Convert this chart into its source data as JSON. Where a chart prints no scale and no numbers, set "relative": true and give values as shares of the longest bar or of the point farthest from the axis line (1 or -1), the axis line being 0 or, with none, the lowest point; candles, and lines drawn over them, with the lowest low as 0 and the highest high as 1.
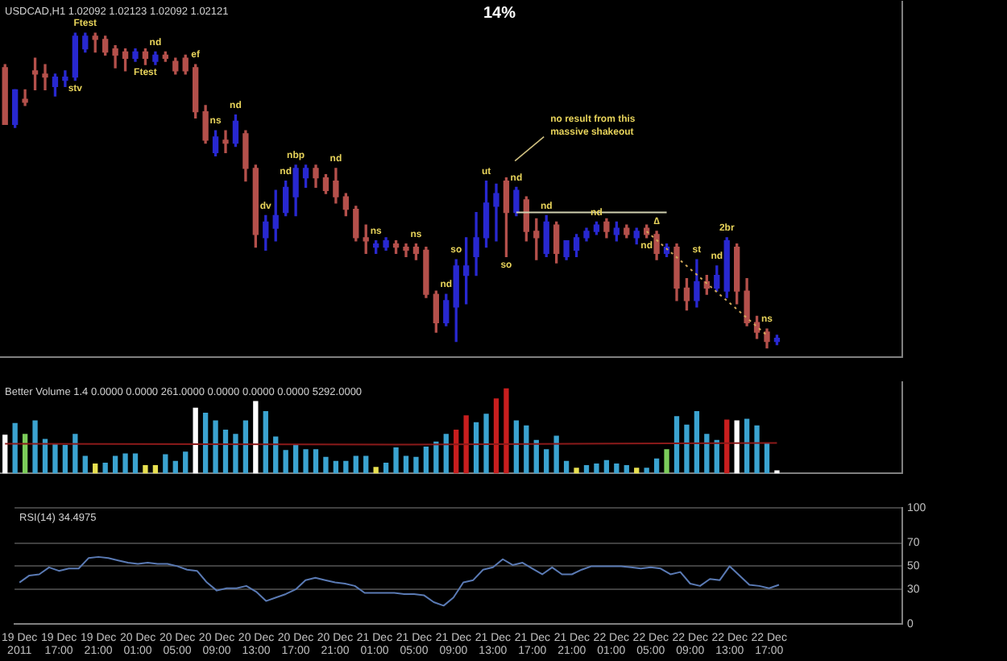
{
  "chart_data": [
    {
      "type": "candlestick",
      "title": "USDCAD,H1 1.02092 1.02123 1.02092 1.02121",
      "relative": true,
      "categories": [
        null,
        null,
        null,
        null,
        null,
        null,
        null,
        null,
        null,
        null,
        null,
        null,
        null,
        null,
        null,
        null,
        null,
        null,
        null,
        null,
        null,
        null,
        null,
        null,
        null,
        null,
        null,
        null,
        null,
        null,
        null,
        null,
        null,
        null,
        null,
        null,
        null,
        null,
        null,
        null,
        null,
        null,
        null,
        null,
        null,
        null,
        null,
        null,
        null,
        null,
        null,
        null,
        null,
        null,
        null,
        null,
        null,
        null,
        null,
        null,
        null,
        null,
        null,
        null,
        null,
        null,
        null,
        null,
        null,
        null,
        null,
        null,
        null,
        null,
        null,
        null,
        null,
        null,
        null,
        null,
        null,
        null,
        null,
        null,
        null,
        null,
        null,
        null,
        null,
        null
      ],
      "ohlc": [
        [
          0.89,
          0.9,
          0.71,
          0.71
        ],
        [
          0.71,
          0.82,
          0.7,
          0.82
        ],
        [
          0.79,
          0.82,
          0.77,
          0.78
        ],
        [
          0.88,
          0.92,
          0.82,
          0.87
        ],
        [
          0.87,
          0.9,
          0.82,
          0.86
        ],
        [
          0.83,
          0.87,
          0.8,
          0.86
        ],
        [
          0.85,
          0.88,
          0.83,
          0.86
        ],
        [
          0.86,
          1.0,
          0.85,
          0.99
        ],
        [
          0.95,
          1.0,
          0.94,
          0.99
        ],
        [
          0.99,
          1.0,
          0.94,
          0.98
        ],
        [
          0.98,
          0.99,
          0.93,
          0.94
        ],
        [
          0.95,
          0.96,
          0.89,
          0.93
        ],
        [
          0.94,
          0.95,
          0.88,
          0.92
        ],
        [
          0.92,
          0.95,
          0.91,
          0.94
        ],
        [
          0.94,
          0.95,
          0.9,
          0.92
        ],
        [
          0.91,
          0.94,
          0.9,
          0.93
        ],
        [
          0.93,
          0.94,
          0.91,
          0.92
        ],
        [
          0.91,
          0.92,
          0.87,
          0.88
        ],
        [
          0.92,
          0.93,
          0.87,
          0.88
        ],
        [
          0.89,
          0.9,
          0.73,
          0.75
        ],
        [
          0.75,
          0.77,
          0.65,
          0.66
        ],
        [
          0.62,
          0.69,
          0.61,
          0.67
        ],
        [
          0.66,
          0.69,
          0.62,
          0.65
        ],
        [
          0.65,
          0.74,
          0.64,
          0.72
        ],
        [
          0.68,
          0.69,
          0.53,
          0.57
        ],
        [
          0.57,
          0.58,
          0.32,
          0.36
        ],
        [
          0.35,
          0.42,
          0.31,
          0.4
        ],
        [
          0.38,
          0.5,
          0.34,
          0.42
        ],
        [
          0.43,
          0.53,
          0.42,
          0.51
        ],
        [
          0.48,
          0.58,
          0.42,
          0.57
        ],
        [
          0.54,
          0.58,
          0.51,
          0.57
        ],
        [
          0.57,
          0.58,
          0.51,
          0.54
        ],
        [
          0.54,
          0.55,
          0.49,
          0.5
        ],
        [
          0.53,
          0.57,
          0.46,
          0.48
        ],
        [
          0.48,
          0.49,
          0.42,
          0.44
        ],
        [
          0.44,
          0.45,
          0.34,
          0.35
        ],
        [
          0.35,
          0.39,
          0.3,
          0.34
        ],
        [
          0.32,
          0.34,
          0.3,
          0.33
        ],
        [
          0.32,
          0.35,
          0.31,
          0.34
        ],
        [
          0.33,
          0.34,
          0.3,
          0.32
        ],
        [
          0.32,
          0.33,
          0.29,
          0.31
        ],
        [
          0.32,
          0.33,
          0.28,
          0.3
        ],
        [
          0.31,
          0.32,
          0.16,
          0.17
        ],
        [
          0.17,
          0.18,
          0.05,
          0.08
        ],
        [
          0.08,
          0.17,
          0.07,
          0.15
        ],
        [
          0.13,
          0.28,
          0.02,
          0.26
        ],
        [
          0.23,
          0.35,
          0.14,
          0.26
        ],
        [
          0.29,
          0.43,
          0.23,
          0.35
        ],
        [
          0.35,
          0.53,
          0.32,
          0.46
        ],
        [
          0.45,
          0.52,
          0.34,
          0.49
        ],
        [
          0.53,
          0.54,
          0.29,
          0.43
        ],
        [
          0.43,
          0.51,
          0.42,
          0.5
        ],
        [
          0.47,
          0.48,
          0.34,
          0.37
        ],
        [
          0.37,
          0.41,
          0.28,
          0.35
        ],
        [
          0.3,
          0.42,
          0.29,
          0.4
        ],
        [
          0.39,
          0.4,
          0.27,
          0.3
        ],
        [
          0.29,
          0.34,
          0.28,
          0.34
        ],
        [
          0.31,
          0.36,
          0.29,
          0.35
        ],
        [
          0.35,
          0.38,
          0.34,
          0.37
        ],
        [
          0.37,
          0.4,
          0.36,
          0.39
        ],
        [
          0.4,
          0.41,
          0.35,
          0.37
        ],
        [
          0.36,
          0.4,
          0.34,
          0.38
        ],
        [
          0.38,
          0.39,
          0.35,
          0.36
        ],
        [
          0.35,
          0.38,
          0.33,
          0.37
        ],
        [
          0.38,
          0.39,
          0.35,
          0.36
        ],
        [
          0.36,
          0.37,
          0.28,
          0.3
        ],
        [
          0.3,
          0.33,
          0.29,
          0.32
        ],
        [
          0.32,
          0.33,
          0.15,
          0.19
        ],
        [
          0.19,
          0.22,
          0.12,
          0.15
        ],
        [
          0.15,
          0.28,
          0.13,
          0.21
        ],
        [
          0.21,
          0.23,
          0.17,
          0.19
        ],
        [
          0.19,
          0.26,
          0.18,
          0.23
        ],
        [
          0.18,
          0.35,
          0.16,
          0.34
        ],
        [
          0.32,
          0.33,
          0.14,
          0.18
        ],
        [
          0.18,
          0.22,
          0.07,
          0.08
        ],
        [
          0.08,
          0.1,
          0.03,
          0.05
        ],
        [
          0.05,
          0.06,
          0.0,
          0.02
        ],
        [
          0.02,
          0.04,
          0.01,
          0.03
        ],
        null,
        null,
        null,
        null,
        null,
        null,
        null,
        null,
        null,
        null,
        null,
        null
      ],
      "value_labels": [
        null,
        null,
        null,
        null,
        null,
        null,
        null,
        "stv",
        "Ftest",
        null,
        null,
        null,
        null,
        null,
        "Ftest",
        "nd",
        null,
        null,
        null,
        "ef",
        null,
        "ns",
        null,
        "nd",
        null,
        null,
        "dv",
        null,
        "nd",
        "nbp",
        null,
        null,
        null,
        "nd",
        null,
        null,
        null,
        "ns",
        null,
        null,
        null,
        "ns",
        null,
        null,
        "nd",
        "so",
        null,
        null,
        "ut",
        null,
        "so",
        "nd",
        null,
        null,
        "nd",
        null,
        null,
        null,
        null,
        "nd",
        null,
        null,
        null,
        null,
        "nd",
        "∆",
        null,
        null,
        null,
        "st",
        null,
        "nd",
        "2br",
        null,
        null,
        null,
        "ns",
        null,
        null,
        null,
        null,
        null,
        null,
        null,
        null,
        null,
        null,
        null,
        null,
        null
      ],
      "series": [
        {
          "type": "line",
          "values": [
            null,
            null,
            null,
            null,
            null,
            null,
            null,
            null,
            null,
            null,
            null,
            null,
            null,
            null,
            null,
            null,
            null,
            null,
            null,
            null,
            null,
            null,
            null,
            null,
            null,
            null,
            null,
            null,
            null,
            null,
            null,
            null,
            null,
            null,
            null,
            null,
            null,
            null,
            null,
            null,
            null,
            null,
            null,
            null,
            null,
            null,
            null,
            null,
            null,
            null,
            null,
            0.43,
            null,
            null,
            null,
            null,
            null,
            null,
            null,
            null,
            null,
            null,
            null,
            null,
            null,
            null,
            0.43,
            null,
            null,
            null,
            null,
            null,
            null,
            null,
            null,
            null,
            null,
            null,
            null,
            null,
            null,
            null,
            null,
            null,
            null,
            null,
            null,
            null,
            null,
            null
          ],
          "color": "#d0d0b0",
          "line_style": "solid"
        },
        {
          "type": "line",
          "values": [
            null,
            null,
            null,
            null,
            null,
            null,
            null,
            null,
            null,
            null,
            null,
            null,
            null,
            null,
            null,
            null,
            null,
            null,
            null,
            null,
            null,
            null,
            null,
            null,
            null,
            null,
            null,
            null,
            null,
            null,
            null,
            null,
            null,
            null,
            null,
            null,
            null,
            null,
            null,
            null,
            null,
            null,
            null,
            null,
            null,
            null,
            null,
            null,
            null,
            null,
            null,
            null,
            null,
            null,
            null,
            null,
            null,
            null,
            null,
            null,
            null,
            null,
            null,
            null,
            0.37,
            null,
            null,
            null,
            null,
            null,
            null,
            null,
            null,
            null,
            null,
            null,
            0.04,
            null,
            null,
            null,
            null,
            null,
            null,
            null,
            null,
            null,
            null,
            null,
            null,
            null
          ],
          "color": "#d2aa5a",
          "line_style": "dotted"
        }
      ],
      "annotations": [
        "14%",
        "no result from this massive shakeout"
      ]
    },
    {
      "type": "bar",
      "title": "Better Volume 1.4 0.0000 0.0000 261.0000 0.0000 0.0000 0.0000 5292.0000",
      "relative": true,
      "categories": [
        null,
        null,
        null,
        null,
        null,
        null,
        null,
        null,
        null,
        null,
        null,
        null,
        null,
        null,
        null,
        null,
        null,
        null,
        null,
        null,
        null,
        null,
        null,
        null,
        null,
        null,
        null,
        null,
        null,
        null,
        null,
        null,
        null,
        null,
        null,
        null,
        null,
        null,
        null,
        null,
        null,
        null,
        null,
        null,
        null,
        null,
        null,
        null,
        null,
        null,
        null,
        null,
        null,
        null,
        null,
        null,
        null,
        null,
        null,
        null,
        null,
        null,
        null,
        null,
        null,
        null,
        null,
        null,
        null,
        null,
        null,
        null,
        null,
        null,
        null,
        null,
        null,
        null,
        null,
        null,
        null,
        null,
        null,
        null,
        null,
        null,
        null,
        null,
        null,
        null
      ],
      "series": [
        {
          "type": "bar",
          "values": [
            0.45,
            0.59,
            0.46,
            0.62,
            0.4,
            0.34,
            0.33,
            0.46,
            0.2,
            0.11,
            0.12,
            0.2,
            0.23,
            0.23,
            0.09,
            0.09,
            0.22,
            0.14,
            0.25,
            0.77,
            0.71,
            0.62,
            0.51,
            0.46,
            0.62,
            0.85,
            0.73,
            0.43,
            0.27,
            0.34,
            0.28,
            0.28,
            0.19,
            0.14,
            0.14,
            0.2,
            0.2,
            0.07,
            0.12,
            0.3,
            0.2,
            0.19,
            0.31,
            0.37,
            0.46,
            0.51,
            0.68,
            0.6,
            0.7,
            0.88,
            1,
            0.62,
            0.56,
            0.39,
            0.28,
            0.44,
            0.14,
            0.06,
            0.09,
            0.11,
            0.15,
            0.11,
            0.09,
            0.06,
            0.06,
            0.17,
            0.28,
            0.67,
            0.57,
            0.73,
            0.46,
            0.39,
            0.63,
            0.62,
            0.64,
            0.56,
            0.35,
            0.03,
            null,
            null,
            null,
            null,
            null,
            null,
            null,
            null,
            null,
            null,
            null,
            null
          ],
          "colors": [
            "#ffffff",
            "#3ba3d0",
            "#7ccd5a",
            "#3ba3d0",
            "#3ba3d0",
            "#3ba3d0",
            "#3ba3d0",
            "#3ba3d0",
            "#3ba3d0",
            "#e8e050",
            "#3ba3d0",
            "#3ba3d0",
            "#3ba3d0",
            "#3ba3d0",
            "#e8e050",
            "#e8e050",
            "#3ba3d0",
            "#3ba3d0",
            "#3ba3d0",
            "#ffffff",
            "#3ba3d0",
            "#3ba3d0",
            "#3ba3d0",
            "#3ba3d0",
            "#3ba3d0",
            "#ffffff",
            "#3ba3d0",
            "#3ba3d0",
            "#3ba3d0",
            "#3ba3d0",
            "#3ba3d0",
            "#3ba3d0",
            "#3ba3d0",
            "#3ba3d0",
            "#3ba3d0",
            "#3ba3d0",
            "#3ba3d0",
            "#e8e050",
            "#3ba3d0",
            "#3ba3d0",
            "#3ba3d0",
            "#3ba3d0",
            "#3ba3d0",
            "#3ba3d0",
            "#3ba3d0",
            "#c81e1e",
            "#c81e1e",
            "#3ba3d0",
            "#3ba3d0",
            "#c81e1e",
            "#c81e1e",
            "#3ba3d0",
            "#3ba3d0",
            "#3ba3d0",
            "#3ba3d0",
            "#3ba3d0",
            "#3ba3d0",
            "#e8e050",
            "#3ba3d0",
            "#3ba3d0",
            "#3ba3d0",
            "#3ba3d0",
            "#3ba3d0",
            "#e8e050",
            "#3ba3d0",
            "#3ba3d0",
            "#7ccd5a",
            "#3ba3d0",
            "#3ba3d0",
            "#3ba3d0",
            "#3ba3d0",
            "#3ba3d0",
            "#c81e1e",
            "#ffffff",
            "#3ba3d0",
            "#3ba3d0",
            "#3ba3d0",
            "#ffffff",
            null,
            null,
            null,
            null,
            null,
            null,
            null,
            null,
            null,
            null,
            null,
            null
          ]
        },
        {
          "type": "line",
          "values": [
            0.35,
            null,
            null,
            null,
            null,
            null,
            null,
            null,
            null,
            null,
            null,
            null,
            null,
            null,
            null,
            null,
            null,
            null,
            null,
            null,
            null,
            null,
            null,
            null,
            null,
            null,
            null,
            null,
            null,
            null,
            null,
            null,
            null,
            null,
            null,
            null,
            null,
            null,
            null,
            0.34,
            null,
            null,
            null,
            null,
            null,
            null,
            null,
            null,
            null,
            null,
            null,
            null,
            null,
            null,
            null,
            null,
            null,
            null,
            null,
            null,
            null,
            null,
            null,
            null,
            null,
            null,
            null,
            null,
            null,
            null,
            null,
            null,
            null,
            null,
            null,
            null,
            null,
            0.36,
            null,
            null,
            null,
            null,
            null,
            null,
            null,
            null,
            null,
            null,
            null,
            null
          ],
          "color": "#8b1a1a"
        }
      ]
    },
    {
      "type": "line",
      "title": "RSI(14) 34.4975",
      "ylim": [
        0,
        100
      ],
      "yticks": [
        0,
        30,
        50,
        70,
        100
      ],
      "grid": "y",
      "marker": "none",
      "categories": [
        "19 Dec 2011",
        null,
        null,
        null,
        "19 Dec 17:00",
        null,
        null,
        null,
        "19 Dec 21:00",
        null,
        null,
        null,
        "20 Dec 01:00",
        null,
        null,
        null,
        "20 Dec 05:00",
        null,
        null,
        null,
        "20 Dec 09:00",
        null,
        null,
        null,
        "20 Dec 13:00",
        null,
        null,
        null,
        "20 Dec 17:00",
        null,
        null,
        null,
        "20 Dec 21:00",
        null,
        null,
        null,
        "21 Dec 01:00",
        null,
        null,
        null,
        "21 Dec 05:00",
        null,
        null,
        null,
        "21 Dec 09:00",
        null,
        null,
        null,
        "21 Dec 13:00",
        null,
        null,
        null,
        "21 Dec 17:00",
        null,
        null,
        null,
        "21 Dec 21:00",
        null,
        null,
        null,
        "22 Dec 01:00",
        null,
        null,
        null,
        "22 Dec 05:00",
        null,
        null,
        null,
        "22 Dec 09:00",
        null,
        null,
        null,
        "22 Dec 13:00",
        null,
        null,
        null,
        "22 Dec 17:00",
        null,
        null,
        null,
        null,
        null,
        null,
        null,
        null,
        null,
        null,
        null,
        null,
        null
      ],
      "series": [
        {
          "color": "#5a7ab4",
          "values": [
            36,
            42,
            43,
            49,
            46,
            48,
            48,
            57,
            58,
            57,
            55,
            53,
            52,
            53,
            52,
            52,
            50,
            47,
            46,
            36,
            29,
            31,
            31,
            33,
            28,
            20,
            23,
            26,
            30,
            38,
            40,
            38,
            36,
            35,
            33,
            27,
            27,
            27,
            27,
            26,
            26,
            25,
            19,
            16,
            23,
            36,
            38,
            47,
            49,
            56,
            51,
            53,
            48,
            43,
            49,
            43,
            43,
            47,
            50,
            50,
            50,
            50,
            49,
            48,
            49,
            48,
            43,
            45,
            35,
            33,
            39,
            38,
            50,
            42,
            34,
            33,
            31,
            34,
            null,
            null,
            null,
            null,
            null,
            null,
            null,
            null,
            null,
            null,
            null,
            null
          ]
        }
      ]
    }
  ]
}
